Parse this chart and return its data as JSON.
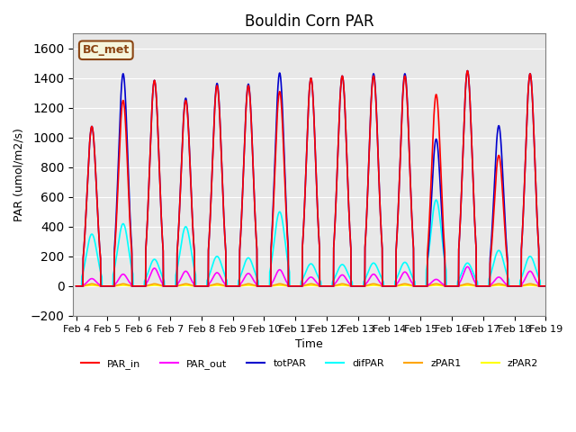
{
  "title": "Bouldin Corn PAR",
  "ylabel": "PAR (umol/m2/s)",
  "xlabel": "Time",
  "ylim": [
    -200,
    1700
  ],
  "yticks": [
    -200,
    0,
    200,
    400,
    600,
    800,
    1000,
    1200,
    1400,
    1600
  ],
  "annotation_text": "BC_met",
  "annotation_color": "#8B4513",
  "annotation_bg": "#F5F5DC",
  "plot_bg": "#E8E8E8",
  "lines": {
    "PAR_in": {
      "color": "#FF0000",
      "lw": 1.2
    },
    "PAR_out": {
      "color": "#FF00FF",
      "lw": 1.2
    },
    "totPAR": {
      "color": "#0000CD",
      "lw": 1.2
    },
    "difPAR": {
      "color": "#00FFFF",
      "lw": 1.2
    },
    "zPAR1": {
      "color": "#FFA500",
      "lw": 1.2
    },
    "zPAR2": {
      "color": "#FFFF00",
      "lw": 1.2
    }
  },
  "day_start": 4,
  "day_end": 19,
  "n_days": 15,
  "samples_per_day": 144,
  "peaks": [
    {
      "day": 4,
      "par_in": 1075,
      "par_out": 50,
      "totpar": 1075,
      "difpar": 350,
      "zpar1": 15,
      "zpar2": 5
    },
    {
      "day": 5,
      "par_in": 1250,
      "par_out": 80,
      "totpar": 1430,
      "difpar": 420,
      "zpar1": 15,
      "zpar2": 5
    },
    {
      "day": 6,
      "par_in": 1385,
      "par_out": 120,
      "totpar": 1385,
      "difpar": 180,
      "zpar1": 15,
      "zpar2": 5
    },
    {
      "day": 7,
      "par_in": 1250,
      "par_out": 100,
      "totpar": 1265,
      "difpar": 400,
      "zpar1": 15,
      "zpar2": 5
    },
    {
      "day": 8,
      "par_in": 1350,
      "par_out": 90,
      "totpar": 1365,
      "difpar": 200,
      "zpar1": 15,
      "zpar2": 5
    },
    {
      "day": 9,
      "par_in": 1350,
      "par_out": 85,
      "totpar": 1360,
      "difpar": 190,
      "zpar1": 15,
      "zpar2": 5
    },
    {
      "day": 10,
      "par_in": 1310,
      "par_out": 110,
      "totpar": 1435,
      "difpar": 500,
      "zpar1": 15,
      "zpar2": 5
    },
    {
      "day": 11,
      "par_in": 1400,
      "par_out": 60,
      "totpar": 1400,
      "difpar": 150,
      "zpar1": 15,
      "zpar2": 5
    },
    {
      "day": 12,
      "par_in": 1415,
      "par_out": 75,
      "totpar": 1415,
      "difpar": 145,
      "zpar1": 15,
      "zpar2": 5
    },
    {
      "day": 13,
      "par_in": 1415,
      "par_out": 80,
      "totpar": 1430,
      "difpar": 155,
      "zpar1": 15,
      "zpar2": 5
    },
    {
      "day": 14,
      "par_in": 1415,
      "par_out": 95,
      "totpar": 1430,
      "difpar": 160,
      "zpar1": 15,
      "zpar2": 5
    },
    {
      "day": 15,
      "par_in": 1290,
      "par_out": 45,
      "totpar": 990,
      "difpar": 580,
      "zpar1": 15,
      "zpar2": 5
    },
    {
      "day": 16,
      "par_in": 1450,
      "par_out": 130,
      "totpar": 1450,
      "difpar": 155,
      "zpar1": 15,
      "zpar2": 5
    },
    {
      "day": 17,
      "par_in": 880,
      "par_out": 60,
      "totpar": 1080,
      "difpar": 240,
      "zpar1": 15,
      "zpar2": 5
    },
    {
      "day": 18,
      "par_in": 1430,
      "par_out": 100,
      "totpar": 1430,
      "difpar": 200,
      "zpar1": 15,
      "zpar2": 5
    }
  ]
}
